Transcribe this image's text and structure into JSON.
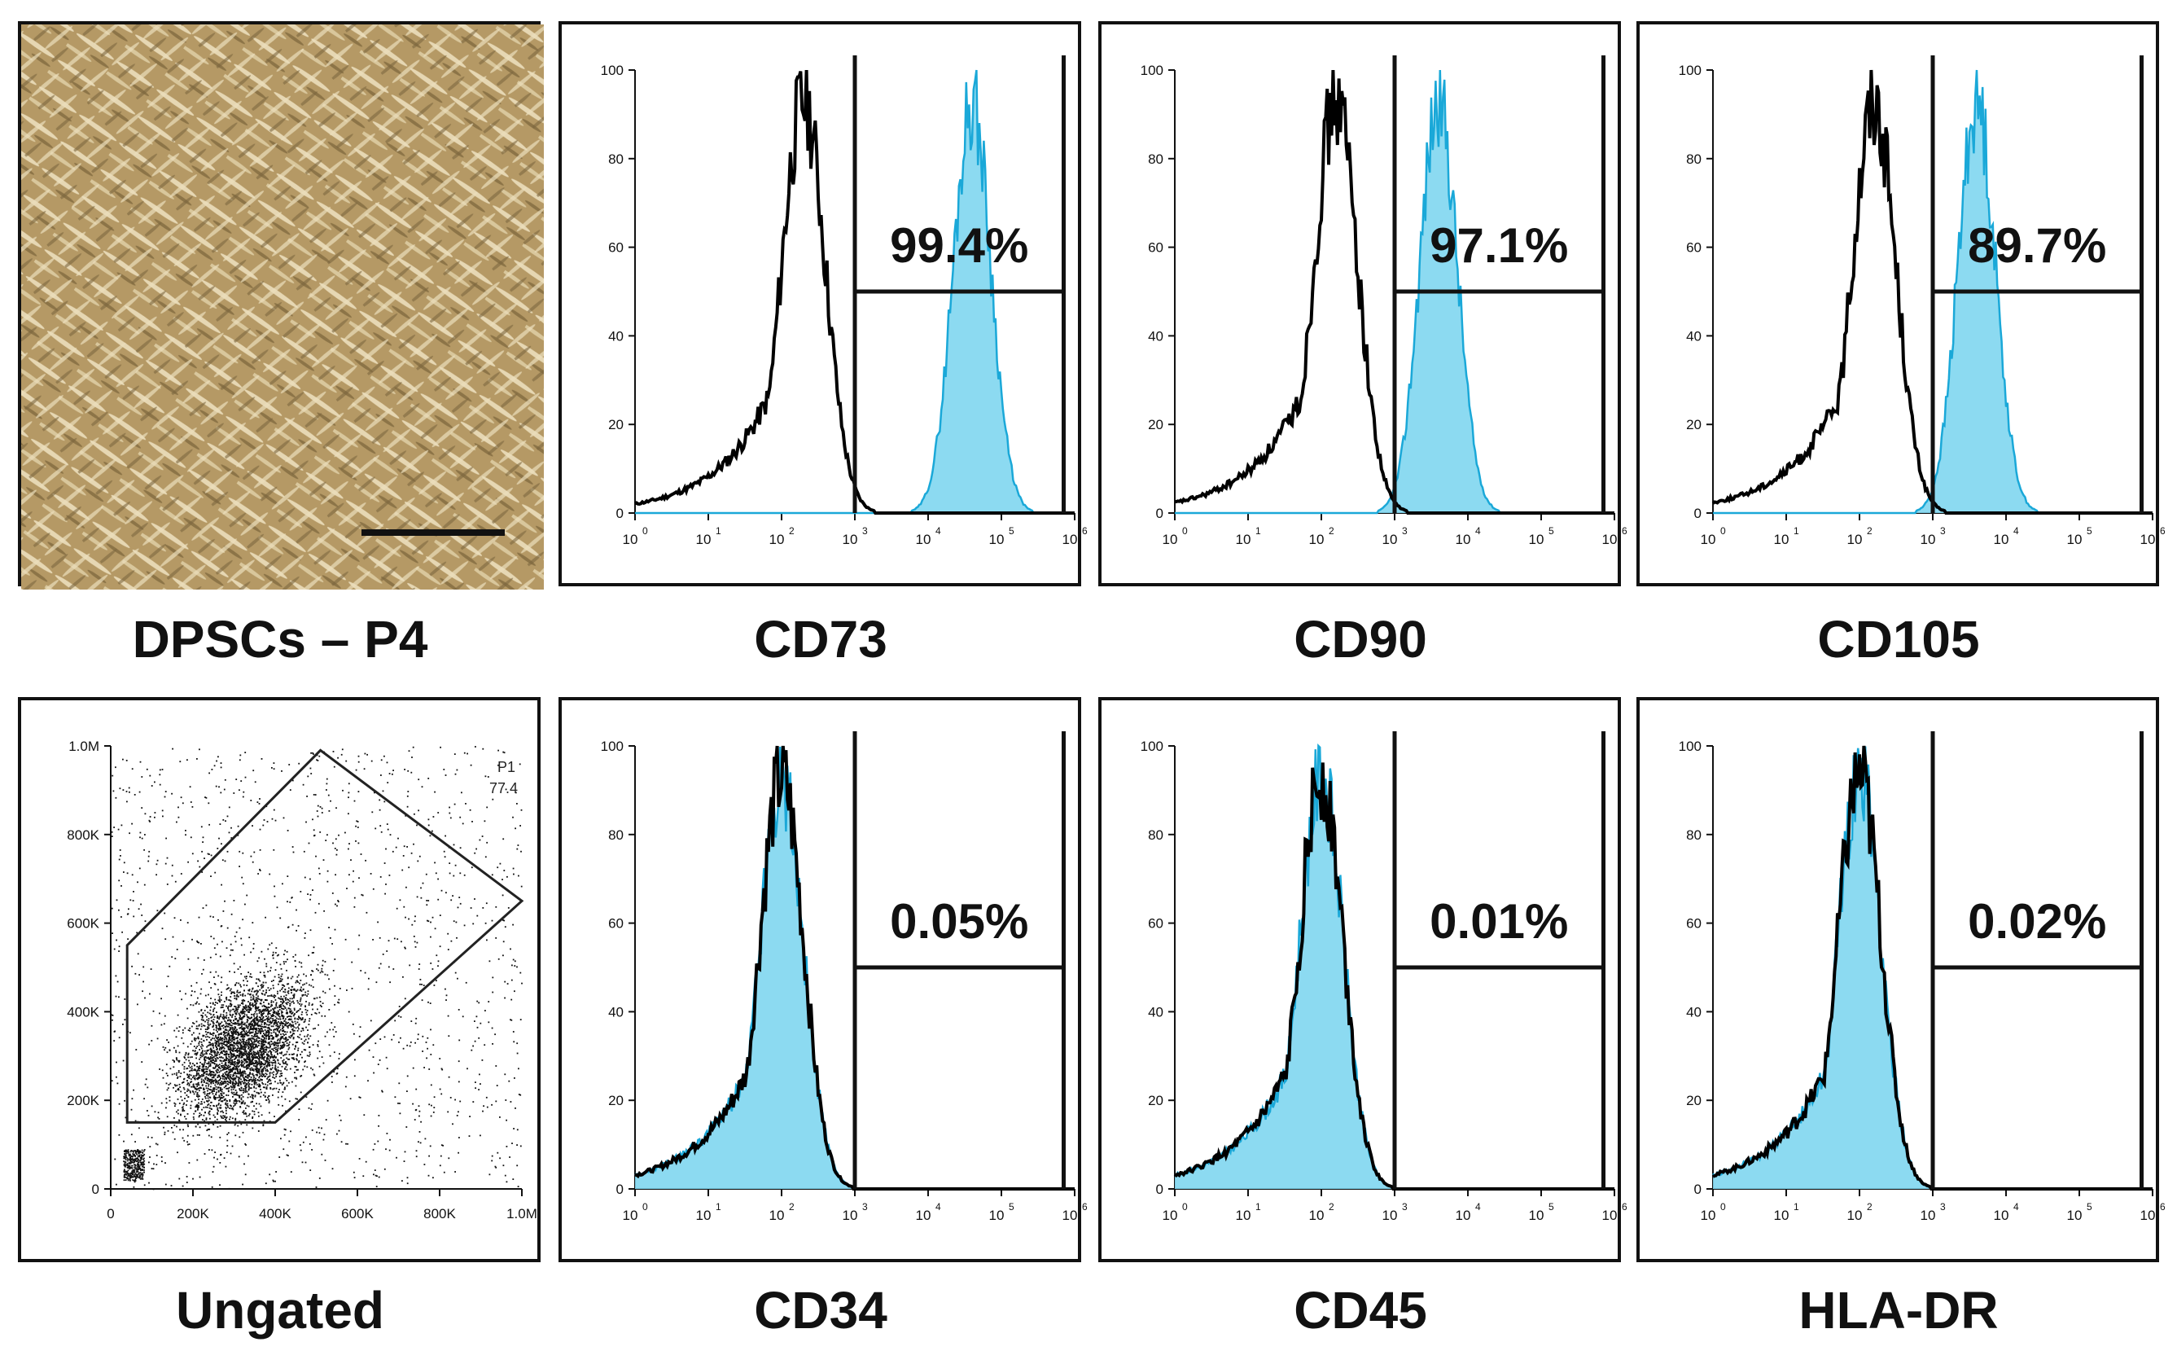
{
  "figure": {
    "micrograph": {
      "caption": "DPSCs – P4"
    },
    "scatter": {
      "caption": "Ungated",
      "gate_name": "P1",
      "gate_value": "77.4",
      "x_ticks": [
        "0",
        "200K",
        "400K",
        "600K",
        "800K",
        "1.0M"
      ],
      "y_ticks": [
        "0",
        "200K",
        "400K",
        "600K",
        "800K",
        "1.0M"
      ]
    },
    "y_ticks": [
      "0",
      "20",
      "40",
      "60",
      "80",
      "100"
    ],
    "x_tick_exponents": [
      "0",
      "1",
      "2",
      "3",
      "4",
      "5",
      "6"
    ],
    "x_tick_base": "10"
  },
  "chart_data": [
    {
      "type": "histogram",
      "title": "CD73",
      "percentage": "99.4%",
      "isotype_peak_log": 2.3,
      "stain_peak_log": 4.6,
      "ylim": [
        0,
        100
      ],
      "xlim_log": [
        0,
        6
      ]
    },
    {
      "type": "histogram",
      "title": "CD90",
      "percentage": "97.1%",
      "isotype_peak_log": 2.2,
      "stain_peak_log": 3.6,
      "ylim": [
        0,
        100
      ],
      "xlim_log": [
        0,
        6
      ]
    },
    {
      "type": "histogram",
      "title": "CD105",
      "percentage": "89.7%",
      "isotype_peak_log": 2.2,
      "stain_peak_log": 3.6,
      "ylim": [
        0,
        100
      ],
      "xlim_log": [
        0,
        6
      ]
    },
    {
      "type": "histogram",
      "title": "CD34",
      "percentage": "0.05%",
      "isotype_peak_log": 2.0,
      "stain_peak_log": 2.0,
      "ylim": [
        0,
        100
      ],
      "xlim_log": [
        0,
        6
      ]
    },
    {
      "type": "histogram",
      "title": "CD45",
      "percentage": "0.01%",
      "isotype_peak_log": 2.0,
      "stain_peak_log": 2.0,
      "ylim": [
        0,
        100
      ],
      "xlim_log": [
        0,
        6
      ]
    },
    {
      "type": "histogram",
      "title": "HLA-DR",
      "percentage": "0.02%",
      "isotype_peak_log": 2.0,
      "stain_peak_log": 2.0,
      "ylim": [
        0,
        100
      ],
      "xlim_log": [
        0,
        6
      ]
    }
  ],
  "colors": {
    "isotype": "#000000",
    "stain_fill": "#7fd6ef",
    "stain_line": "#1aa8d8"
  }
}
